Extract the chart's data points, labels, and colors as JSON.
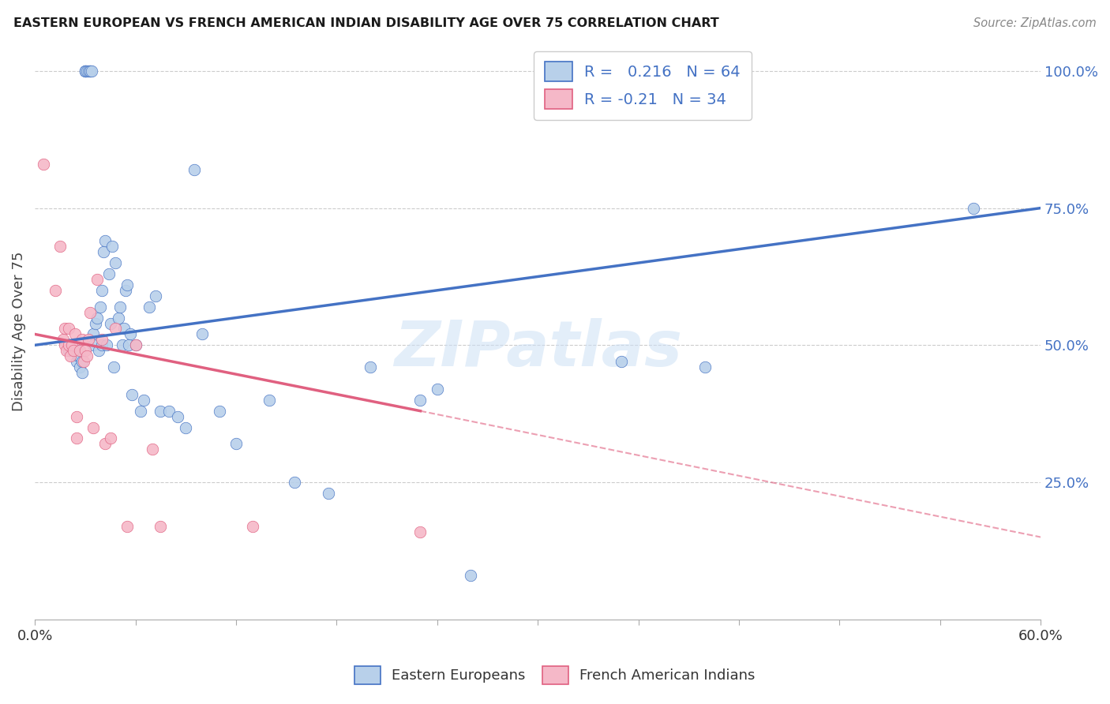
{
  "title": "EASTERN EUROPEAN VS FRENCH AMERICAN INDIAN DISABILITY AGE OVER 75 CORRELATION CHART",
  "source": "Source: ZipAtlas.com",
  "ylabel": "Disability Age Over 75",
  "right_yticks": [
    "100.0%",
    "75.0%",
    "50.0%",
    "25.0%"
  ],
  "right_ytick_vals": [
    1.0,
    0.75,
    0.5,
    0.25
  ],
  "legend_label1": "Eastern Europeans",
  "legend_label2": "French American Indians",
  "R1": 0.216,
  "N1": 64,
  "R2": -0.21,
  "N2": 34,
  "color_blue": "#b8d0ea",
  "color_pink": "#f5b8c8",
  "color_blue_line": "#4472C4",
  "color_pink_line": "#e06080",
  "watermark": "ZIPatlas",
  "blue_x": [
    0.02,
    0.025,
    0.025,
    0.026,
    0.027,
    0.027,
    0.028,
    0.028,
    0.03,
    0.03,
    0.03,
    0.031,
    0.032,
    0.033,
    0.033,
    0.034,
    0.035,
    0.035,
    0.036,
    0.037,
    0.038,
    0.039,
    0.04,
    0.04,
    0.041,
    0.042,
    0.043,
    0.044,
    0.045,
    0.046,
    0.047,
    0.048,
    0.05,
    0.051,
    0.052,
    0.053,
    0.054,
    0.055,
    0.056,
    0.057,
    0.058,
    0.06,
    0.063,
    0.065,
    0.068,
    0.072,
    0.075,
    0.08,
    0.085,
    0.09,
    0.095,
    0.1,
    0.11,
    0.12,
    0.14,
    0.155,
    0.175,
    0.2,
    0.23,
    0.24,
    0.26,
    0.35,
    0.4,
    0.56
  ],
  "blue_y": [
    0.49,
    0.47,
    0.49,
    0.48,
    0.46,
    0.48,
    0.45,
    0.47,
    1.0,
    1.0,
    1.0,
    1.0,
    1.0,
    1.0,
    1.0,
    1.0,
    0.5,
    0.52,
    0.54,
    0.55,
    0.49,
    0.57,
    0.5,
    0.6,
    0.67,
    0.69,
    0.5,
    0.63,
    0.54,
    0.68,
    0.46,
    0.65,
    0.55,
    0.57,
    0.5,
    0.53,
    0.6,
    0.61,
    0.5,
    0.52,
    0.41,
    0.5,
    0.38,
    0.4,
    0.57,
    0.59,
    0.38,
    0.38,
    0.37,
    0.35,
    0.82,
    0.52,
    0.38,
    0.32,
    0.4,
    0.25,
    0.23,
    0.46,
    0.4,
    0.42,
    0.08,
    0.47,
    0.46,
    0.75
  ],
  "pink_x": [
    0.005,
    0.012,
    0.015,
    0.017,
    0.018,
    0.018,
    0.019,
    0.02,
    0.02,
    0.021,
    0.022,
    0.023,
    0.024,
    0.025,
    0.025,
    0.027,
    0.028,
    0.029,
    0.03,
    0.031,
    0.032,
    0.033,
    0.035,
    0.037,
    0.04,
    0.042,
    0.045,
    0.048,
    0.055,
    0.06,
    0.07,
    0.075,
    0.13,
    0.23
  ],
  "pink_y": [
    0.83,
    0.6,
    0.68,
    0.51,
    0.5,
    0.53,
    0.49,
    0.5,
    0.53,
    0.48,
    0.5,
    0.49,
    0.52,
    0.33,
    0.37,
    0.49,
    0.51,
    0.47,
    0.49,
    0.48,
    0.51,
    0.56,
    0.35,
    0.62,
    0.51,
    0.32,
    0.33,
    0.53,
    0.17,
    0.5,
    0.31,
    0.17,
    0.17,
    0.16
  ],
  "blue_line": [
    0.0,
    0.6,
    0.5,
    0.75
  ],
  "pink_line_solid": [
    0.0,
    0.23,
    0.52,
    0.38
  ],
  "pink_line_dash": [
    0.23,
    0.6,
    0.38,
    0.15
  ],
  "xlim": [
    0.0,
    0.6
  ],
  "ylim": [
    0.0,
    1.05
  ]
}
